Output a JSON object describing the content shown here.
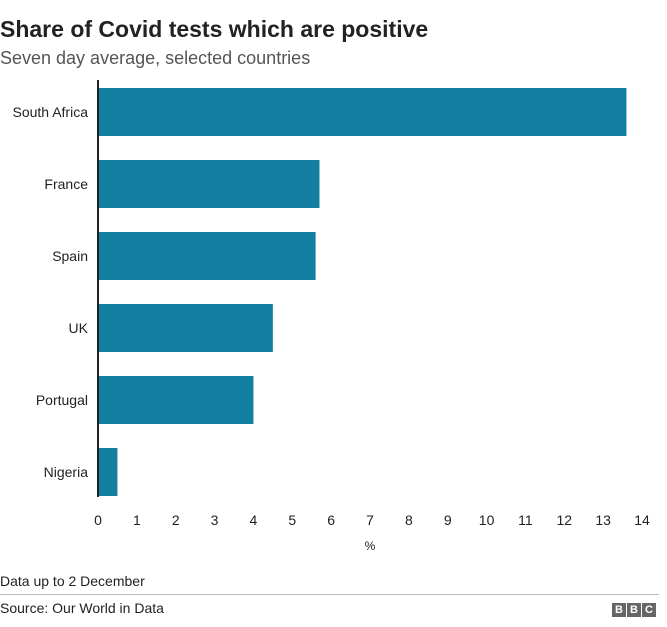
{
  "chart_data": {
    "type": "bar",
    "orientation": "horizontal",
    "title": "Share of Covid tests which are positive",
    "subtitle": "Seven day average, selected countries",
    "categories": [
      "South Africa",
      "France",
      "Spain",
      "UK",
      "Portugal",
      "Nigeria"
    ],
    "values": [
      13.6,
      5.7,
      5.6,
      4.5,
      4.0,
      0.5
    ],
    "xlabel": "%",
    "xlim": [
      0,
      14
    ],
    "xticks": [
      "0",
      "1",
      "2",
      "3",
      "4",
      "5",
      "6",
      "7",
      "8",
      "9",
      "10",
      "11",
      "12",
      "13",
      "14"
    ],
    "grid": false,
    "bar_color": "#1380a1"
  },
  "footer": {
    "note": "Data up to 2 December",
    "source": "Source: Our World in Data",
    "logo": [
      "B",
      "B",
      "C"
    ]
  }
}
